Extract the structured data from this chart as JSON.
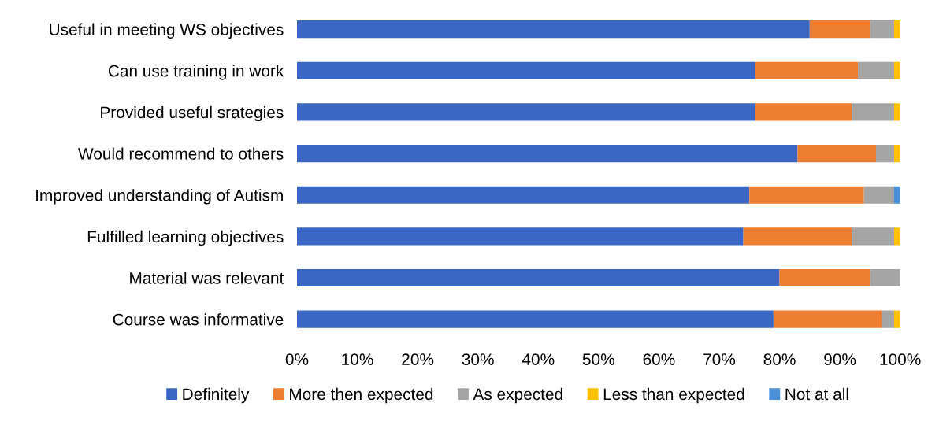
{
  "chart_data": {
    "type": "bar",
    "orientation": "horizontal",
    "stacked": true,
    "categories": [
      "Useful in meeting WS objectives",
      "Can use training in work",
      "Provided useful srategies",
      "Would recommend to others",
      "Improved understanding of Autism",
      "Fulfilled learning objectives",
      "Material was relevant",
      "Course was informative"
    ],
    "series": [
      {
        "name": "Definitely",
        "color": "#3a66c4",
        "values": [
          85,
          76,
          76,
          83,
          75,
          74,
          80,
          79
        ]
      },
      {
        "name": "More then expected",
        "color": "#ed7d31",
        "values": [
          10,
          17,
          16,
          13,
          19,
          18,
          15,
          18
        ]
      },
      {
        "name": "As expected",
        "color": "#a5a5a5",
        "values": [
          4,
          6,
          7,
          3,
          5,
          7,
          5,
          2
        ]
      },
      {
        "name": "Less than expected",
        "color": "#ffc000",
        "values": [
          1,
          1,
          1,
          1,
          0,
          1,
          0,
          1
        ]
      },
      {
        "name": "Not at all",
        "color": "#4a90d9",
        "values": [
          0,
          0,
          0,
          0,
          1,
          0,
          0,
          0
        ]
      }
    ],
    "xlim": [
      0,
      100
    ],
    "xticks": [
      {
        "value": 0,
        "label": "0%"
      },
      {
        "value": 10,
        "label": "10%"
      },
      {
        "value": 20,
        "label": "20%"
      },
      {
        "value": 30,
        "label": "30%"
      },
      {
        "value": 40,
        "label": "40%"
      },
      {
        "value": 50,
        "label": "50%"
      },
      {
        "value": 60,
        "label": "60%"
      },
      {
        "value": 70,
        "label": "70%"
      },
      {
        "value": 80,
        "label": "80%"
      },
      {
        "value": 90,
        "label": "90%"
      },
      {
        "value": 100,
        "label": "100%"
      }
    ],
    "grid": false,
    "legend": "bottom"
  }
}
